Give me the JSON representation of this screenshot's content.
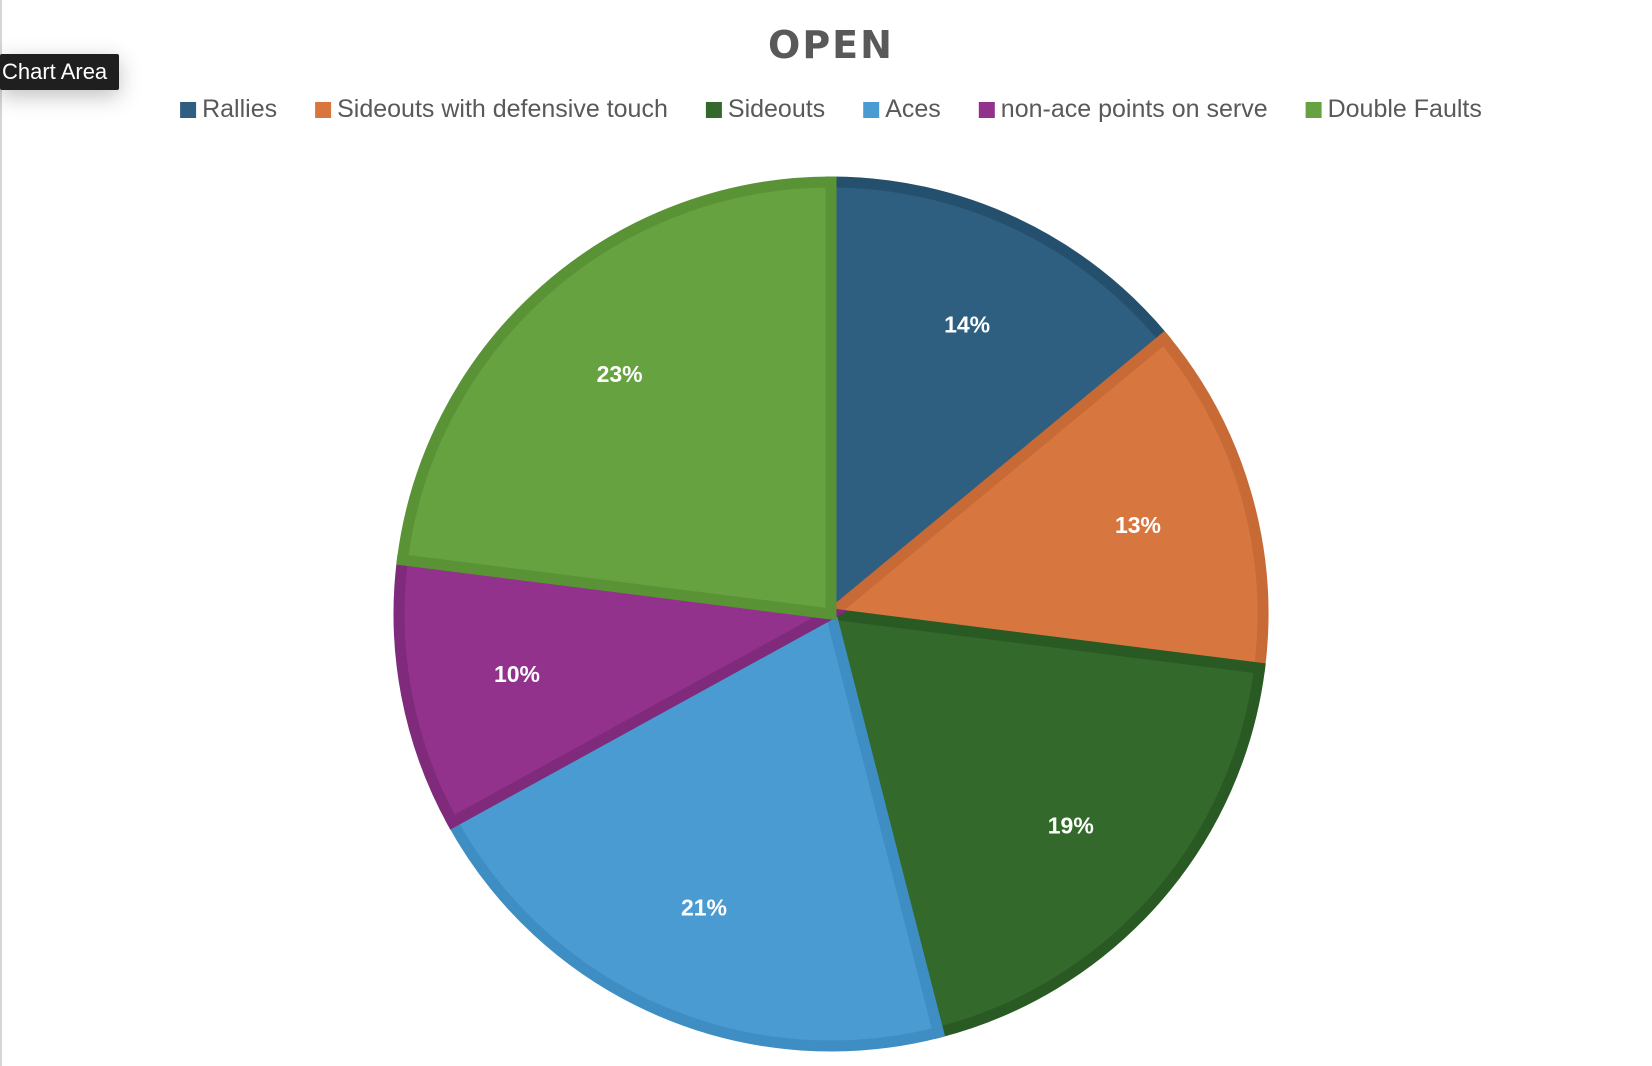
{
  "tooltip": {
    "text": "Chart Area"
  },
  "chart_data": {
    "type": "pie",
    "title": "OPEN",
    "legend_position": "top",
    "categories": [
      "Rallies",
      "Sideouts with defensive touch",
      "Sideouts",
      "Aces",
      "non-ace points on serve",
      "Double Faults"
    ],
    "values": [
      14,
      13,
      19,
      21,
      10,
      23
    ],
    "labels": [
      "14%",
      "13%",
      "19%",
      "21%",
      "10%",
      "23%"
    ],
    "colors": [
      "#2e5f80",
      "#d87640",
      "#336a2c",
      "#4a9bd1",
      "#92328c",
      "#66a23f"
    ],
    "border_colors": [
      "#25506d",
      "#c86a36",
      "#2a5a24",
      "#3e8ec4",
      "#7f2a7a",
      "#5a9336"
    ]
  }
}
